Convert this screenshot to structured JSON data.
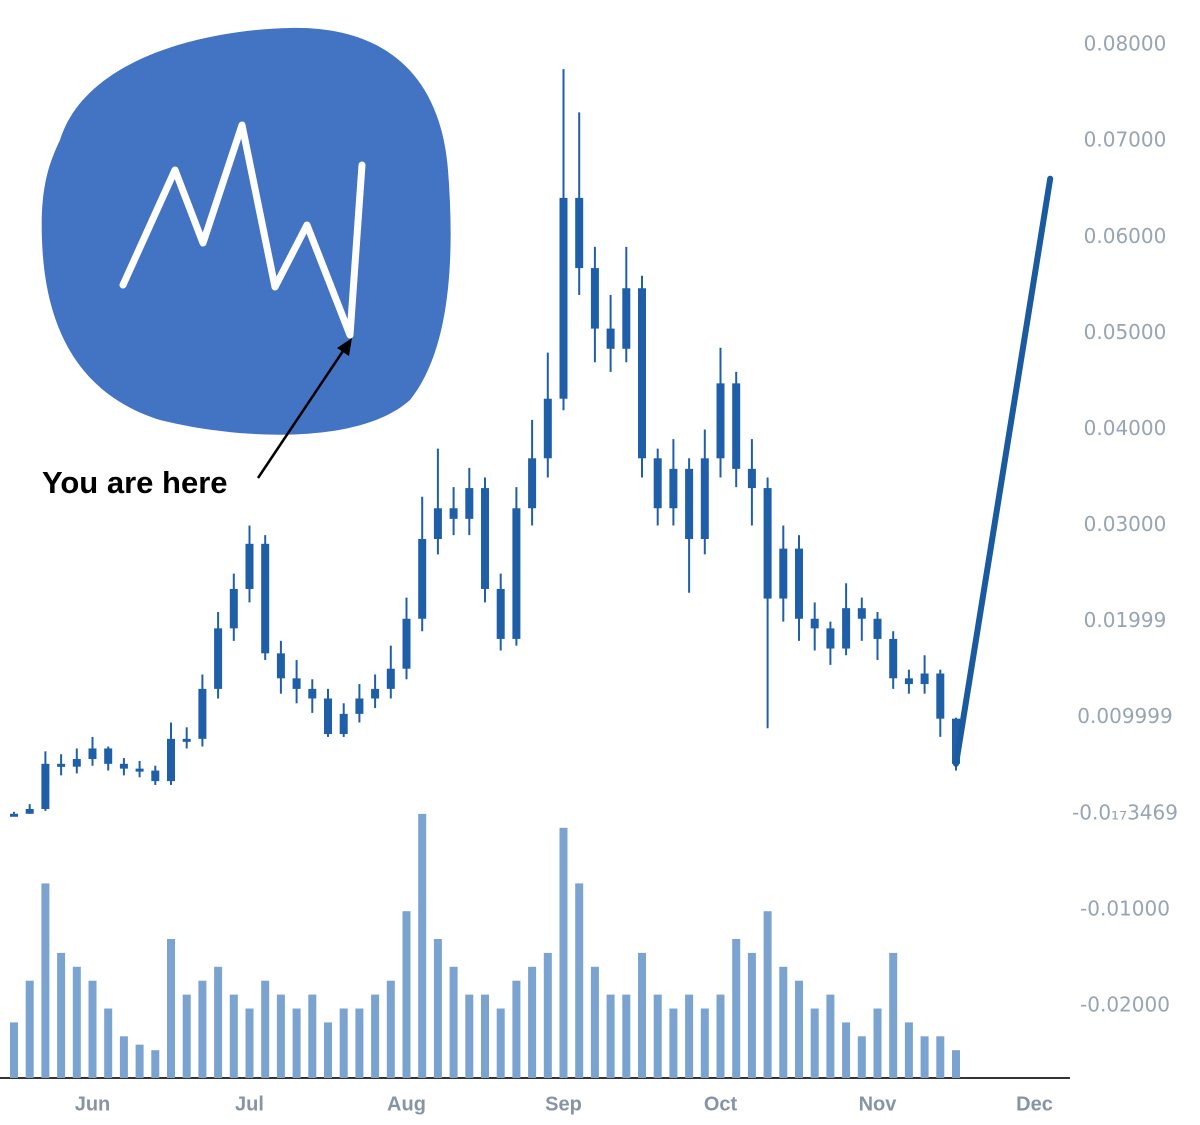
{
  "chart_data": {
    "type": "candlestick",
    "annotation": "You are here",
    "categories": [
      null,
      null,
      null,
      null,
      null,
      "Jun",
      null,
      null,
      null,
      null,
      null,
      null,
      null,
      null,
      null,
      "Jul",
      null,
      null,
      null,
      null,
      null,
      null,
      null,
      null,
      null,
      "Aug",
      null,
      null,
      null,
      null,
      null,
      null,
      null,
      null,
      null,
      "Sep",
      null,
      null,
      null,
      null,
      null,
      null,
      null,
      null,
      null,
      "Oct",
      null,
      null,
      null,
      null,
      null,
      null,
      null,
      null,
      null,
      "Nov",
      null,
      null,
      null,
      null,
      null,
      null,
      null,
      null,
      null,
      "Dec",
      null
    ],
    "color": "#1f5fa8",
    "open": [
      0.0,
      0.0,
      0.0005,
      0.0052,
      0.0049,
      0.0057,
      0.0068,
      0.0052,
      0.0047,
      0.0045,
      0.0034,
      0.0078,
      0.0078,
      0.013,
      0.0193,
      0.0234,
      0.0281,
      0.0167,
      0.0141,
      0.013,
      0.012,
      0.0083,
      0.0104,
      0.012,
      0.013,
      0.0151,
      0.0203,
      0.0286,
      0.0318,
      0.0307,
      0.0339,
      0.0234,
      0.0182,
      0.0318,
      0.037,
      0.0432,
      0.0641,
      0.0568,
      0.0505,
      0.0484,
      0.0547,
      0.037,
      0.0318,
      0.0359,
      0.0286,
      0.037,
      0.0448,
      0.0359,
      0.0339,
      0.0224,
      0.0276,
      0.0203,
      0.0193,
      0.0172,
      0.0214,
      0.0203,
      0.0182,
      0.0141,
      0.0135,
      0.0146,
      0.0099,
      null,
      null,
      null,
      null,
      null,
      null
    ],
    "high": [
      0.0002,
      0.001,
      0.0065,
      0.0062,
      0.0068,
      0.008,
      0.007,
      0.0058,
      0.0055,
      0.005,
      0.0095,
      0.009,
      0.0145,
      0.021,
      0.025,
      0.03,
      0.029,
      0.018,
      0.016,
      0.014,
      0.013,
      0.0115,
      0.0135,
      0.0145,
      0.0175,
      0.0225,
      0.033,
      0.038,
      0.034,
      0.036,
      0.035,
      0.025,
      0.034,
      0.041,
      0.048,
      0.0775,
      0.073,
      0.059,
      0.054,
      0.059,
      0.056,
      0.038,
      0.039,
      0.037,
      0.04,
      0.0485,
      0.046,
      0.039,
      0.035,
      0.03,
      0.029,
      0.022,
      0.02,
      0.024,
      0.0225,
      0.021,
      0.019,
      0.015,
      0.0165,
      0.015,
      0.01,
      null,
      null,
      null,
      null,
      null,
      null
    ],
    "low": [
      0.0,
      0.0,
      0.0003,
      0.004,
      0.0042,
      0.005,
      0.0045,
      0.004,
      0.0038,
      0.003,
      0.003,
      0.0068,
      0.007,
      0.012,
      0.018,
      0.022,
      0.016,
      0.0125,
      0.0115,
      0.0105,
      0.008,
      0.008,
      0.0095,
      0.011,
      0.012,
      0.014,
      0.019,
      0.027,
      0.029,
      0.029,
      0.022,
      0.017,
      0.0175,
      0.03,
      0.035,
      0.042,
      0.054,
      0.047,
      0.046,
      0.047,
      0.035,
      0.03,
      0.03,
      0.023,
      0.027,
      0.035,
      0.034,
      0.03,
      0.0089,
      0.02,
      0.018,
      0.017,
      0.0155,
      0.0165,
      0.018,
      0.016,
      0.013,
      0.0125,
      0.0125,
      0.008,
      0.0045,
      null,
      null,
      null,
      null,
      null,
      null
    ],
    "close": [
      0.0,
      0.0005,
      0.0052,
      0.0049,
      0.0057,
      0.0068,
      0.0052,
      0.0047,
      0.0045,
      0.0034,
      0.0078,
      0.0078,
      0.013,
      0.0193,
      0.0234,
      0.0281,
      0.0167,
      0.0141,
      0.013,
      0.012,
      0.0083,
      0.0104,
      0.012,
      0.013,
      0.0151,
      0.0203,
      0.0286,
      0.0318,
      0.0307,
      0.0339,
      0.0234,
      0.0182,
      0.0318,
      0.037,
      0.0432,
      0.0641,
      0.0568,
      0.0505,
      0.0484,
      0.0547,
      0.037,
      0.0318,
      0.0359,
      0.0286,
      0.037,
      0.0448,
      0.0359,
      0.0339,
      0.0224,
      0.0276,
      0.0203,
      0.0193,
      0.0172,
      0.0214,
      0.0203,
      0.0182,
      0.0141,
      0.0135,
      0.0146,
      0.0099,
      0.0052,
      null,
      null,
      null,
      null,
      null,
      null
    ],
    "projection": {
      "color": "#1a5ba0",
      "values": [
        null,
        null,
        null,
        null,
        null,
        null,
        null,
        null,
        null,
        null,
        null,
        null,
        null,
        null,
        null,
        null,
        null,
        null,
        null,
        null,
        null,
        null,
        null,
        null,
        null,
        null,
        null,
        null,
        null,
        null,
        null,
        null,
        null,
        null,
        null,
        null,
        null,
        null,
        null,
        null,
        null,
        null,
        null,
        null,
        null,
        null,
        null,
        null,
        null,
        null,
        null,
        null,
        null,
        null,
        null,
        null,
        null,
        null,
        null,
        null,
        0.0052,
        null,
        null,
        null,
        null,
        null,
        0.0661
      ]
    },
    "volume": {
      "color": "#7ba3cf",
      "ylim": [
        0,
        100
      ],
      "values": [
        20,
        35,
        70,
        45,
        40,
        35,
        25,
        15,
        12,
        10,
        50,
        30,
        35,
        40,
        30,
        25,
        35,
        30,
        25,
        30,
        20,
        25,
        25,
        30,
        35,
        60,
        95,
        50,
        40,
        30,
        30,
        25,
        35,
        40,
        45,
        90,
        70,
        40,
        30,
        30,
        45,
        30,
        25,
        30,
        25,
        30,
        50,
        45,
        60,
        40,
        35,
        25,
        30,
        20,
        15,
        25,
        45,
        20,
        15,
        15,
        10,
        null,
        null,
        null,
        null,
        null,
        null
      ]
    },
    "ylim": [
      -0.0275,
      0.0847
    ],
    "yticks": [
      {
        "value": 0.08,
        "label": "0.08000"
      },
      {
        "value": 0.07,
        "label": "0.07000"
      },
      {
        "value": 0.06,
        "label": "0.06000"
      },
      {
        "value": 0.05,
        "label": "0.05000"
      },
      {
        "value": 0.04,
        "label": "0.04000"
      },
      {
        "value": 0.03,
        "label": "0.03000"
      },
      {
        "value": 0.01999,
        "label": "0.01999"
      },
      {
        "value": 0.009999,
        "label": "0.009999"
      },
      {
        "value": -3.469e-21,
        "label": "-0.0₁₇3469"
      },
      {
        "value": -0.01,
        "label": "-0.01000"
      },
      {
        "value": -0.02,
        "label": "-0.02000"
      }
    ],
    "grid": false
  }
}
